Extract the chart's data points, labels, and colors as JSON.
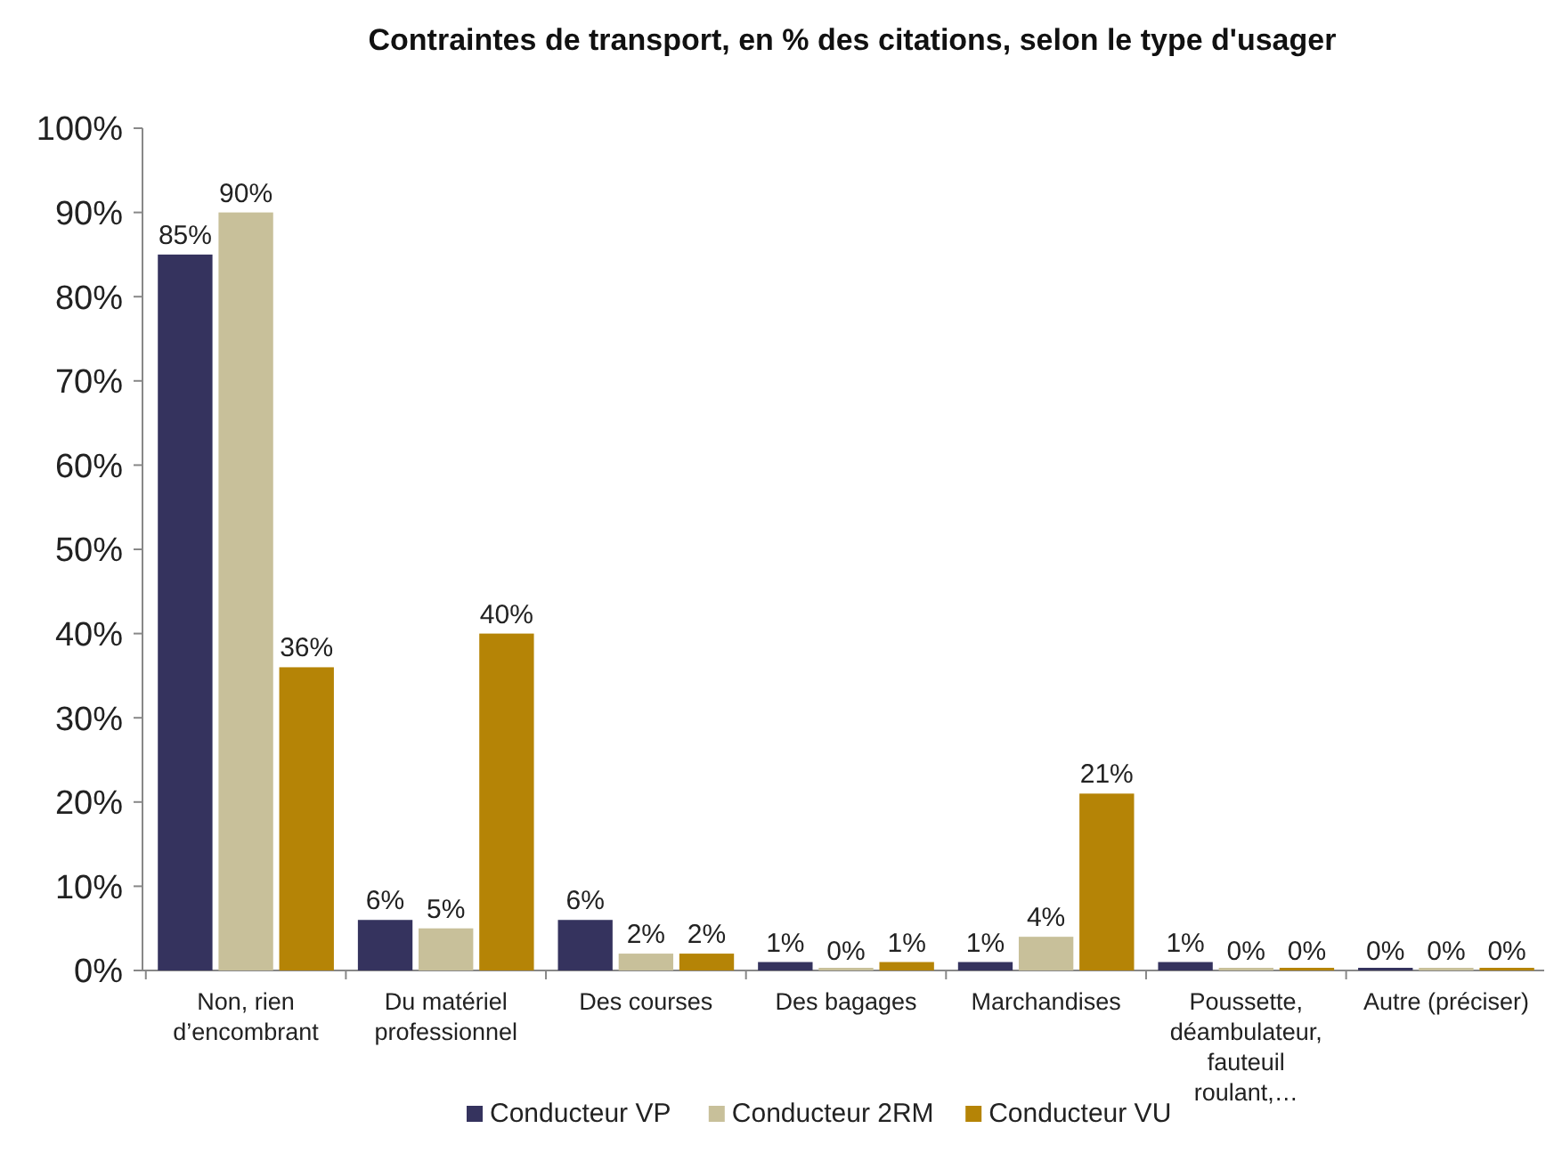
{
  "chart_data": {
    "type": "bar",
    "title": "Contraintes de transport, en % des citations, selon le type d'usager",
    "categories": [
      "Non, rien d’encombrant",
      "Du matériel professionnel",
      "Des courses",
      "Des bagages",
      "Marchandises",
      "Poussette, déambulateur, fauteuil roulant,…",
      "Autre (préciser)"
    ],
    "series": [
      {
        "name": "Conducteur VP",
        "color": "#35335e",
        "values": [
          85,
          6,
          6,
          1,
          1,
          1,
          0
        ],
        "value_labels": [
          "85%",
          "6%",
          "6%",
          "1%",
          "1%",
          "1%",
          "0%"
        ]
      },
      {
        "name": "Conducteur 2RM",
        "color": "#c8c09a",
        "values": [
          90,
          5,
          2,
          0,
          4,
          0,
          0
        ],
        "value_labels": [
          "90%",
          "5%",
          "2%",
          "0%",
          "4%",
          "0%",
          "0%"
        ]
      },
      {
        "name": "Conducteur VU",
        "color": "#b58406",
        "values": [
          36,
          40,
          2,
          1,
          21,
          0,
          0
        ],
        "value_labels": [
          "36%",
          "40%",
          "2%",
          "1%",
          "21%",
          "0%",
          "0%"
        ]
      }
    ],
    "ylim": [
      0,
      100
    ],
    "yticks": [
      {
        "value": 0,
        "label": "0%"
      },
      {
        "value": 10,
        "label": "10%"
      },
      {
        "value": 20,
        "label": "20%"
      },
      {
        "value": 30,
        "label": "30%"
      },
      {
        "value": 40,
        "label": "40%"
      },
      {
        "value": 50,
        "label": "50%"
      },
      {
        "value": 60,
        "label": "60%"
      },
      {
        "value": 70,
        "label": "70%"
      },
      {
        "value": 80,
        "label": "80%"
      },
      {
        "value": 90,
        "label": "90%"
      },
      {
        "value": 100,
        "label": "100%"
      }
    ],
    "grid": false,
    "legend": "bottom"
  }
}
